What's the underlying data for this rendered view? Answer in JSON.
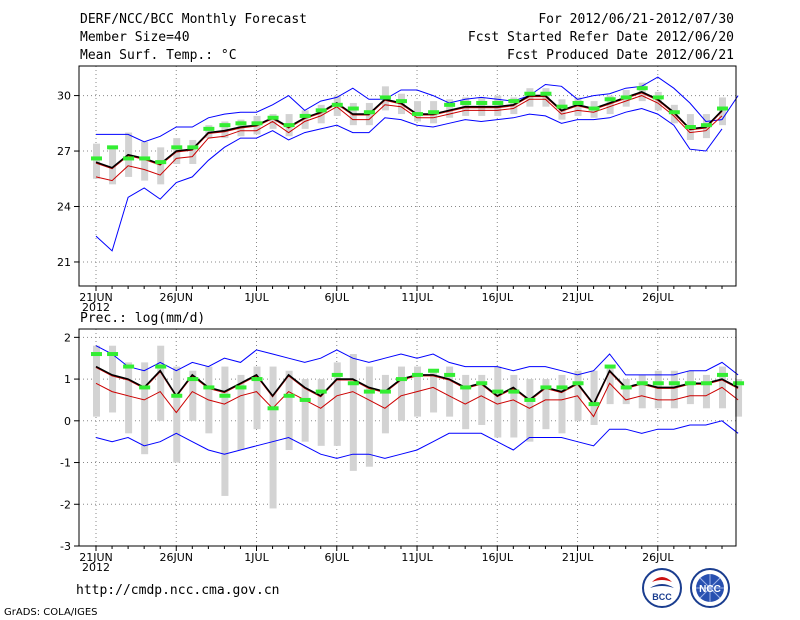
{
  "header": {
    "title": "DERF/NCC/BCC Monthly Forecast",
    "member_size": "Member Size=40",
    "variable": "Mean Surf. Temp.: °C",
    "period": "For 2012/06/21-2012/07/30",
    "fcst_started": "Fcst Started Refer Date 2012/06/20",
    "fcst_produced": "Fcst Produced Date 2012/06/21"
  },
  "footer": {
    "url": "http://cmdp.ncc.cma.gov.cn",
    "grads": "GrADS: COLA/IGES",
    "logo_bcc_text": "BCC",
    "logo_ncc_text": "NCC"
  },
  "colors": {
    "envelope": "#0000ff",
    "ensemble_mean": "#000000",
    "mean_shadow": "#cc0000",
    "member_range": "#d3d3d3",
    "observation": "#33ee33"
  },
  "chart_data": [
    {
      "id": "temperature",
      "type": "line",
      "title": "Mean Surf. Temp.: °C",
      "x_tick_labels": [
        "21JUN",
        "26JUN",
        "1JUL",
        "6JUL",
        "11JUL",
        "16JUL",
        "21JUL",
        "26JUL"
      ],
      "x_year_label": "2012",
      "y_ticks": [
        21,
        24,
        27,
        30
      ],
      "ylim": [
        19.7,
        31.6
      ],
      "grid": true,
      "series": [
        {
          "name": "max",
          "values": [
            27.9,
            27.9,
            27.9,
            27.5,
            27.8,
            28.3,
            28.3,
            28.8,
            29.0,
            29.1,
            29.1,
            29.5,
            30.0,
            29.2,
            29.7,
            29.9,
            30.4,
            29.8,
            29.8,
            30.3,
            30.3,
            30.0,
            29.6,
            29.8,
            29.9,
            29.8,
            29.7,
            30.0,
            30.6,
            30.5,
            29.8,
            30.0,
            30.1,
            30.4,
            30.5,
            31.0,
            30.4,
            29.6,
            28.6,
            28.7,
            30.0
          ]
        },
        {
          "name": "mean",
          "values": [
            26.4,
            26.1,
            26.8,
            26.6,
            26.3,
            27.0,
            27.1,
            28.0,
            28.1,
            28.3,
            28.4,
            28.8,
            28.3,
            28.8,
            29.1,
            29.6,
            29.0,
            29.0,
            29.8,
            29.6,
            29.0,
            29.0,
            29.2,
            29.4,
            29.4,
            29.4,
            29.5,
            30.0,
            30.0,
            29.2,
            29.5,
            29.3,
            29.6,
            29.9,
            30.2,
            29.8,
            29.1,
            28.2,
            28.3,
            29.2,
            null
          ]
        },
        {
          "name": "median",
          "values": [
            25.6,
            25.4,
            26.2,
            26.0,
            25.7,
            26.6,
            26.7,
            27.7,
            27.8,
            28.1,
            28.1,
            28.6,
            28.0,
            28.6,
            28.9,
            29.4,
            28.7,
            28.7,
            29.5,
            29.4,
            28.8,
            28.8,
            29.0,
            29.2,
            29.2,
            29.2,
            29.3,
            29.8,
            29.8,
            29.0,
            29.2,
            29.1,
            29.4,
            29.7,
            30.0,
            29.6,
            28.9,
            28.0,
            28.1,
            28.9,
            null
          ]
        },
        {
          "name": "min",
          "values": [
            22.4,
            21.6,
            24.5,
            25.0,
            24.4,
            25.3,
            25.6,
            26.5,
            27.2,
            27.7,
            27.7,
            28.1,
            27.6,
            28.0,
            28.2,
            28.4,
            28.0,
            28.0,
            28.8,
            28.7,
            28.4,
            28.3,
            28.5,
            28.7,
            28.6,
            28.7,
            28.8,
            29.0,
            28.9,
            28.5,
            28.7,
            28.7,
            28.8,
            29.1,
            29.3,
            29.0,
            28.4,
            27.1,
            27.0,
            28.2,
            null
          ]
        },
        {
          "name": "observation",
          "values": [
            26.6,
            27.2,
            26.6,
            26.6,
            26.4,
            27.2,
            27.2,
            28.2,
            28.4,
            28.5,
            28.5,
            28.8,
            28.4,
            28.9,
            29.2,
            29.5,
            29.3,
            29.1,
            29.9,
            29.7,
            29.0,
            29.1,
            29.5,
            29.6,
            29.6,
            29.6,
            29.7,
            30.1,
            30.1,
            29.4,
            29.6,
            29.3,
            29.8,
            29.9,
            30.4,
            29.9,
            29.1,
            28.3,
            28.4,
            29.3,
            null
          ]
        },
        {
          "name": "member_range",
          "low": [
            25.5,
            25.2,
            25.6,
            25.4,
            25.2,
            26.3,
            26.3,
            27.7,
            27.7,
            27.8,
            27.9,
            28.2,
            27.8,
            28.2,
            28.5,
            28.9,
            28.4,
            28.4,
            29.2,
            29.0,
            28.6,
            28.5,
            28.8,
            28.9,
            28.9,
            28.9,
            29.0,
            29.4,
            29.4,
            28.7,
            28.9,
            28.8,
            29.0,
            29.4,
            29.7,
            29.2,
            28.5,
            27.6,
            27.7,
            28.4,
            null
          ],
          "high": [
            27.4,
            27.3,
            28.0,
            27.5,
            27.2,
            27.7,
            27.6,
            28.4,
            28.6,
            28.7,
            28.9,
            29.0,
            29.0,
            29.2,
            29.5,
            30.0,
            29.6,
            29.6,
            30.5,
            30.1,
            29.7,
            29.7,
            29.8,
            29.9,
            29.9,
            30.0,
            29.9,
            30.4,
            30.4,
            29.8,
            29.9,
            29.7,
            30.0,
            30.3,
            30.7,
            30.2,
            29.5,
            29.0,
            29.0,
            29.9,
            null
          ]
        }
      ]
    },
    {
      "id": "precipitation",
      "type": "line",
      "title": "Prec.: log(mm/d)",
      "x_tick_labels": [
        "21JUN",
        "26JUN",
        "1JUL",
        "6JUL",
        "11JUL",
        "16JUL",
        "21JUL",
        "26JUL"
      ],
      "x_year_label": "2012",
      "y_ticks": [
        -3,
        -2,
        -1,
        0,
        1,
        2
      ],
      "ylim": [
        -3,
        2.2
      ],
      "grid": true,
      "series": [
        {
          "name": "max",
          "values": [
            1.8,
            1.6,
            1.3,
            1.2,
            1.4,
            1.2,
            1.4,
            1.3,
            1.5,
            1.4,
            1.7,
            1.6,
            1.5,
            1.4,
            1.5,
            1.7,
            1.5,
            1.4,
            1.5,
            1.6,
            1.5,
            1.6,
            1.4,
            1.3,
            1.3,
            1.3,
            1.2,
            1.3,
            1.3,
            1.2,
            1.1,
            1.2,
            1.6,
            1.1,
            1.1,
            1.1,
            1.1,
            1.2,
            1.2,
            1.4,
            1.1
          ]
        },
        {
          "name": "mean",
          "values": [
            1.3,
            1.1,
            1.0,
            0.8,
            1.2,
            0.6,
            1.1,
            0.8,
            0.7,
            0.9,
            1.1,
            0.6,
            1.1,
            0.8,
            0.6,
            1.0,
            1.0,
            0.8,
            0.7,
            1.0,
            1.1,
            1.1,
            1.0,
            0.8,
            0.9,
            0.6,
            0.8,
            0.5,
            0.8,
            0.7,
            0.9,
            0.4,
            1.2,
            0.8,
            0.9,
            0.8,
            0.8,
            0.9,
            0.9,
            1.0,
            0.8
          ]
        },
        {
          "name": "median",
          "values": [
            0.9,
            0.7,
            0.6,
            0.5,
            0.7,
            0.2,
            0.7,
            0.5,
            0.4,
            0.6,
            0.7,
            0.3,
            0.7,
            0.5,
            0.3,
            0.6,
            0.7,
            0.5,
            0.3,
            0.6,
            0.7,
            0.8,
            0.6,
            0.4,
            0.6,
            0.4,
            0.5,
            0.3,
            0.5,
            0.5,
            0.6,
            0.1,
            0.9,
            0.5,
            0.6,
            0.5,
            0.5,
            0.6,
            0.6,
            0.8,
            0.5
          ]
        },
        {
          "name": "min",
          "values": [
            -0.4,
            -0.5,
            -0.4,
            -0.6,
            -0.5,
            -0.3,
            -0.5,
            -0.7,
            -0.8,
            -0.7,
            -0.6,
            -0.5,
            -0.4,
            -0.6,
            -0.8,
            -0.9,
            -0.8,
            -0.8,
            -0.9,
            -0.8,
            -0.7,
            -0.5,
            -0.3,
            -0.3,
            -0.3,
            -0.5,
            -0.7,
            -0.4,
            -0.4,
            -0.4,
            -0.5,
            -0.6,
            -0.2,
            -0.2,
            -0.3,
            -0.2,
            -0.2,
            -0.1,
            -0.1,
            0.0,
            -0.3
          ]
        },
        {
          "name": "observation",
          "values": [
            1.6,
            1.6,
            1.3,
            0.8,
            1.3,
            0.6,
            1.0,
            0.8,
            0.6,
            0.8,
            1.0,
            0.3,
            0.6,
            0.5,
            0.7,
            1.1,
            0.9,
            0.7,
            0.7,
            1.0,
            1.1,
            1.2,
            1.1,
            0.8,
            0.9,
            0.7,
            0.7,
            0.5,
            0.8,
            0.8,
            0.9,
            0.4,
            1.3,
            0.8,
            0.9,
            0.9,
            0.9,
            0.9,
            0.9,
            1.1,
            0.9
          ]
        },
        {
          "name": "member_range",
          "low": [
            0.1,
            0.2,
            -0.3,
            -0.8,
            0.0,
            -1.0,
            0.0,
            -0.3,
            -1.8,
            -0.7,
            -0.2,
            -2.1,
            -0.7,
            -0.5,
            -0.6,
            -0.6,
            -1.2,
            -1.1,
            -0.3,
            0.0,
            0.1,
            0.2,
            0.1,
            -0.2,
            -0.1,
            -0.4,
            -0.4,
            -0.5,
            -0.2,
            -0.3,
            0.0,
            -0.1,
            0.4,
            0.4,
            0.3,
            0.3,
            0.3,
            0.4,
            0.3,
            0.3,
            0.1
          ],
          "high": [
            1.8,
            1.8,
            1.4,
            1.4,
            1.8,
            1.3,
            1.2,
            1.3,
            1.3,
            1.1,
            1.3,
            1.3,
            1.2,
            1.0,
            1.0,
            1.4,
            1.6,
            1.3,
            1.1,
            1.3,
            1.3,
            1.2,
            1.3,
            1.1,
            1.1,
            1.3,
            1.1,
            1.0,
            1.0,
            1.1,
            1.2,
            1.2,
            1.3,
            1.0,
            1.1,
            1.2,
            1.2,
            1.2,
            1.1,
            1.3,
            1.0
          ]
        }
      ]
    }
  ]
}
